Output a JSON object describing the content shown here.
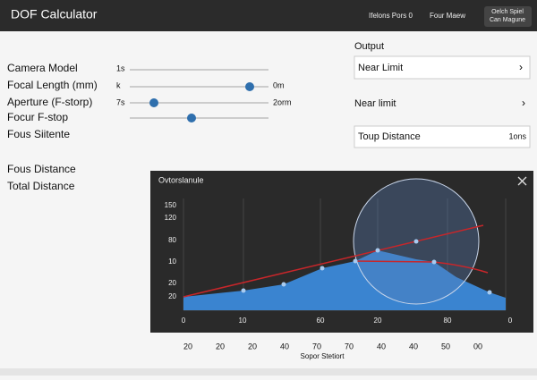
{
  "header": {
    "title": "DOF Calculator",
    "links": [
      "Ifelons Pors 0",
      "Four Maew"
    ],
    "button": [
      "Oelch Spiel",
      "Can Magune"
    ]
  },
  "form": {
    "rows": [
      {
        "label": "Camera Model",
        "left": "1s"
      },
      {
        "label": "Focal Length (mm)",
        "left": "k",
        "right": "0m"
      },
      {
        "label": "Aperture (F-storp)",
        "left": "7s",
        "right": "2orm"
      },
      {
        "label": "Focur F-stop"
      },
      {
        "label": "Fous Siitente"
      }
    ],
    "extra": [
      "Fous Distance",
      "Total Distance"
    ]
  },
  "output": {
    "title": "Output",
    "near_limit_box": "Near Limit",
    "near_limit_row": "Near limit",
    "total_box": {
      "label": "Toup Distance",
      "value": "1ons"
    }
  },
  "panel": {
    "title": "Ovtorslanule",
    "y_labels": [
      150,
      120,
      80,
      10,
      20,
      20
    ],
    "x_labels_inner": [
      0,
      10,
      60,
      20,
      80,
      0
    ],
    "x_labels_outer": [
      20,
      20,
      20,
      40,
      70,
      70,
      40,
      40,
      50,
      "00"
    ],
    "x_title": "Sopor Stetiort"
  }
}
